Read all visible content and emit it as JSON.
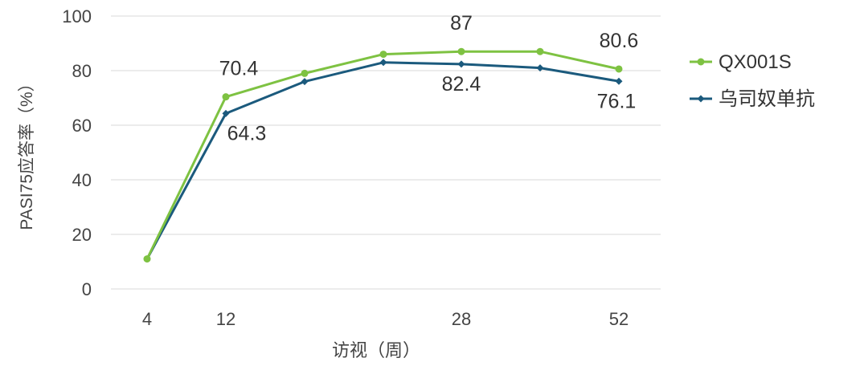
{
  "chart_data": {
    "type": "line",
    "xlabel": "访视（周）",
    "ylabel": "PASI75应答率（%）",
    "x": [
      4,
      12,
      16,
      20,
      28,
      36,
      52
    ],
    "x_tick_labels": [
      "4",
      "12",
      "",
      "",
      "28",
      "",
      "52"
    ],
    "ylim": [
      0,
      100
    ],
    "y_ticks": [
      0,
      20,
      40,
      60,
      80,
      100
    ],
    "grid": true,
    "legend_position": "right",
    "series": [
      {
        "name": "QX001S",
        "color": "#7ec242",
        "marker": "circle",
        "values": [
          11,
          70.4,
          79,
          86,
          87,
          87,
          80.6
        ],
        "data_labels": [
          "",
          "70.4",
          "",
          "",
          "87",
          "",
          "80.6"
        ]
      },
      {
        "name": "乌司奴单抗",
        "color": "#1b5a7d",
        "marker": "diamond",
        "values": [
          11,
          64.3,
          76,
          83,
          82.4,
          81,
          76.1
        ],
        "data_labels": [
          "",
          "64.3",
          "",
          "",
          "82.4",
          "",
          "76.1"
        ]
      }
    ]
  }
}
